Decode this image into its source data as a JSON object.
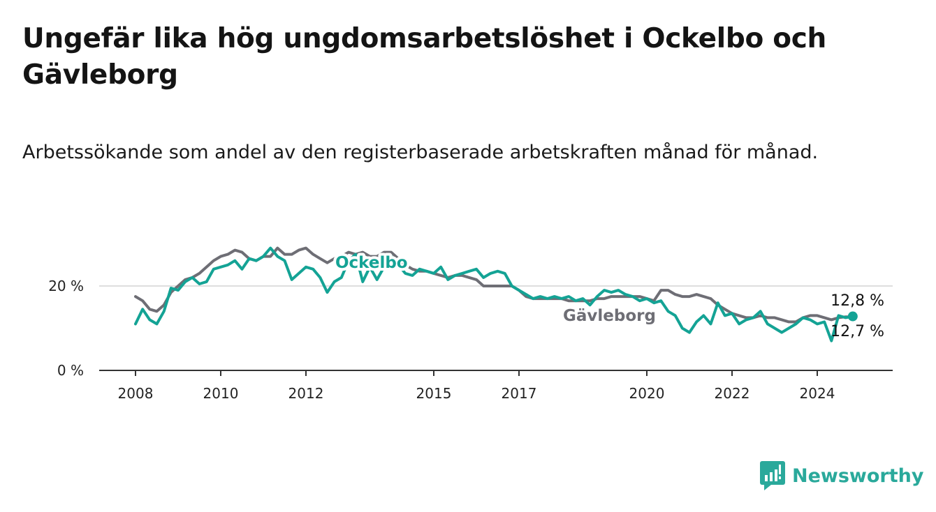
{
  "title": "Ungefär lika hög ungdomsarbetslöshet i Ockelbo och Gävleborg",
  "subtitle": "Arbetssökande som andel av den registerbaserade arbetskraften månad för månad.",
  "brand": {
    "name": "Newsworthy",
    "icon": "newsworthy-logo-icon",
    "color": "#2aa99b"
  },
  "chart_data": {
    "type": "line",
    "title": "Ungefär lika hög ungdomsarbetslöshet i Ockelbo och Gävleborg",
    "subtitle": "Arbetssökande som andel av den registerbaserade arbetskraften månad för månad.",
    "xlabel": "",
    "ylabel": "",
    "x_ticks": [
      "2008",
      "2010",
      "2012",
      "2015",
      "2017",
      "2020",
      "2022",
      "2024"
    ],
    "y_ticks": [
      "0 %",
      "20 %"
    ],
    "ylim": [
      0,
      30
    ],
    "xlim": [
      "2007-11",
      "2025-12"
    ],
    "grid": "horizontal",
    "legend": "inline labels",
    "series": [
      {
        "name": "Ockelbo",
        "color": "#14a395",
        "end_label": "12,8 %",
        "points": [
          [
            "2008-01",
            11
          ],
          [
            "2008-03",
            14.5
          ],
          [
            "2008-05",
            12
          ],
          [
            "2008-07",
            11
          ],
          [
            "2008-09",
            14
          ],
          [
            "2008-11",
            19.5
          ],
          [
            "2009-01",
            19
          ],
          [
            "2009-03",
            21
          ],
          [
            "2009-05",
            22
          ],
          [
            "2009-07",
            20.5
          ],
          [
            "2009-09",
            21
          ],
          [
            "2009-11",
            24
          ],
          [
            "2010-01",
            24.5
          ],
          [
            "2010-03",
            25
          ],
          [
            "2010-05",
            26
          ],
          [
            "2010-07",
            24
          ],
          [
            "2010-09",
            26.5
          ],
          [
            "2010-11",
            26
          ],
          [
            "2011-01",
            27
          ],
          [
            "2011-03",
            29
          ],
          [
            "2011-05",
            27
          ],
          [
            "2011-07",
            26
          ],
          [
            "2011-09",
            21.5
          ],
          [
            "2011-11",
            23
          ],
          [
            "2012-01",
            24.5
          ],
          [
            "2012-03",
            24
          ],
          [
            "2012-05",
            22
          ],
          [
            "2012-07",
            18.5
          ],
          [
            "2012-09",
            21
          ],
          [
            "2012-11",
            22
          ],
          [
            "2013-01",
            26
          ],
          [
            "2013-03",
            27.5
          ],
          [
            "2013-05",
            21
          ],
          [
            "2013-07",
            24.5
          ],
          [
            "2013-09",
            21.5
          ],
          [
            "2013-11",
            24.5
          ],
          [
            "2014-01",
            27
          ],
          [
            "2014-03",
            25
          ],
          [
            "2014-05",
            23
          ],
          [
            "2014-07",
            22.5
          ],
          [
            "2014-09",
            24
          ],
          [
            "2014-11",
            23.5
          ],
          [
            "2015-01",
            23
          ],
          [
            "2015-03",
            24.5
          ],
          [
            "2015-05",
            21.5
          ],
          [
            "2015-07",
            22.5
          ],
          [
            "2015-09",
            23
          ],
          [
            "2015-11",
            23.5
          ],
          [
            "2016-01",
            24
          ],
          [
            "2016-03",
            22
          ],
          [
            "2016-05",
            23
          ],
          [
            "2016-07",
            23.5
          ],
          [
            "2016-09",
            23
          ],
          [
            "2016-11",
            20
          ],
          [
            "2017-01",
            19
          ],
          [
            "2017-03",
            18
          ],
          [
            "2017-05",
            17
          ],
          [
            "2017-07",
            17.5
          ],
          [
            "2017-09",
            17
          ],
          [
            "2017-11",
            17.5
          ],
          [
            "2018-01",
            17
          ],
          [
            "2018-03",
            17.5
          ],
          [
            "2018-05",
            16.5
          ],
          [
            "2018-07",
            17
          ],
          [
            "2018-09",
            15.5
          ],
          [
            "2018-11",
            17.5
          ],
          [
            "2019-01",
            19
          ],
          [
            "2019-03",
            18.5
          ],
          [
            "2019-05",
            19
          ],
          [
            "2019-07",
            18
          ],
          [
            "2019-09",
            17.5
          ],
          [
            "2019-11",
            16.5
          ],
          [
            "2020-01",
            17
          ],
          [
            "2020-03",
            16
          ],
          [
            "2020-05",
            16.5
          ],
          [
            "2020-07",
            14
          ],
          [
            "2020-09",
            13
          ],
          [
            "2020-11",
            10
          ],
          [
            "2021-01",
            9
          ],
          [
            "2021-03",
            11.5
          ],
          [
            "2021-05",
            13
          ],
          [
            "2021-07",
            11
          ],
          [
            "2021-09",
            16
          ],
          [
            "2021-11",
            13
          ],
          [
            "2022-01",
            13.5
          ],
          [
            "2022-03",
            11
          ],
          [
            "2022-05",
            12
          ],
          [
            "2022-07",
            12.5
          ],
          [
            "2022-09",
            14
          ],
          [
            "2022-11",
            11
          ],
          [
            "2023-01",
            10
          ],
          [
            "2023-03",
            9
          ],
          [
            "2023-05",
            10
          ],
          [
            "2023-07",
            11
          ],
          [
            "2023-09",
            12.5
          ],
          [
            "2023-11",
            12
          ],
          [
            "2024-01",
            11
          ],
          [
            "2024-03",
            11.5
          ],
          [
            "2024-05",
            7
          ],
          [
            "2024-07",
            13
          ],
          [
            "2024-09",
            12.5
          ],
          [
            "2024-11",
            12.8
          ]
        ]
      },
      {
        "name": "Gävleborg",
        "color": "#6e6e75",
        "end_label": "12,7 %",
        "points": [
          [
            "2008-01",
            17.5
          ],
          [
            "2008-03",
            16.5
          ],
          [
            "2008-05",
            14.5
          ],
          [
            "2008-07",
            14
          ],
          [
            "2008-09",
            15.5
          ],
          [
            "2008-11",
            18.5
          ],
          [
            "2009-01",
            20
          ],
          [
            "2009-03",
            21.5
          ],
          [
            "2009-05",
            22
          ],
          [
            "2009-07",
            23
          ],
          [
            "2009-09",
            24.5
          ],
          [
            "2009-11",
            26
          ],
          [
            "2010-01",
            27
          ],
          [
            "2010-03",
            27.5
          ],
          [
            "2010-05",
            28.5
          ],
          [
            "2010-07",
            28
          ],
          [
            "2010-09",
            26.5
          ],
          [
            "2010-11",
            26
          ],
          [
            "2011-01",
            27
          ],
          [
            "2011-03",
            27
          ],
          [
            "2011-05",
            29
          ],
          [
            "2011-07",
            27.5
          ],
          [
            "2011-09",
            27.5
          ],
          [
            "2011-11",
            28.5
          ],
          [
            "2012-01",
            29
          ],
          [
            "2012-03",
            27.5
          ],
          [
            "2012-05",
            26.5
          ],
          [
            "2012-07",
            25.5
          ],
          [
            "2012-09",
            26.5
          ],
          [
            "2012-11",
            27
          ],
          [
            "2013-01",
            28
          ],
          [
            "2013-03",
            27.5
          ],
          [
            "2013-05",
            28
          ],
          [
            "2013-07",
            27
          ],
          [
            "2013-09",
            27
          ],
          [
            "2013-11",
            28
          ],
          [
            "2014-01",
            28
          ],
          [
            "2014-03",
            26.5
          ],
          [
            "2014-05",
            25
          ],
          [
            "2014-07",
            24
          ],
          [
            "2014-09",
            23.5
          ],
          [
            "2014-11",
            23.5
          ],
          [
            "2015-01",
            23
          ],
          [
            "2015-03",
            22.5
          ],
          [
            "2015-05",
            22
          ],
          [
            "2015-07",
            22.5
          ],
          [
            "2015-09",
            22.5
          ],
          [
            "2015-11",
            22
          ],
          [
            "2016-01",
            21.5
          ],
          [
            "2016-03",
            20
          ],
          [
            "2016-05",
            20
          ],
          [
            "2016-07",
            20
          ],
          [
            "2016-09",
            20
          ],
          [
            "2016-11",
            20
          ],
          [
            "2017-01",
            19
          ],
          [
            "2017-03",
            17.5
          ],
          [
            "2017-05",
            17
          ],
          [
            "2017-07",
            17
          ],
          [
            "2017-09",
            17
          ],
          [
            "2017-11",
            17
          ],
          [
            "2018-01",
            17
          ],
          [
            "2018-03",
            16.5
          ],
          [
            "2018-05",
            16.5
          ],
          [
            "2018-07",
            16.5
          ],
          [
            "2018-09",
            16.5
          ],
          [
            "2018-11",
            17
          ],
          [
            "2019-01",
            17
          ],
          [
            "2019-03",
            17.5
          ],
          [
            "2019-05",
            17.5
          ],
          [
            "2019-07",
            17.5
          ],
          [
            "2019-09",
            17.5
          ],
          [
            "2019-11",
            17.5
          ],
          [
            "2020-01",
            17
          ],
          [
            "2020-03",
            16.5
          ],
          [
            "2020-05",
            19
          ],
          [
            "2020-07",
            19
          ],
          [
            "2020-09",
            18
          ],
          [
            "2020-11",
            17.5
          ],
          [
            "2021-01",
            17.5
          ],
          [
            "2021-03",
            18
          ],
          [
            "2021-05",
            17.5
          ],
          [
            "2021-07",
            17
          ],
          [
            "2021-09",
            15.5
          ],
          [
            "2021-11",
            14.5
          ],
          [
            "2022-01",
            13.5
          ],
          [
            "2022-03",
            13
          ],
          [
            "2022-05",
            12.5
          ],
          [
            "2022-07",
            12.5
          ],
          [
            "2022-09",
            13
          ],
          [
            "2022-11",
            12.5
          ],
          [
            "2023-01",
            12.5
          ],
          [
            "2023-03",
            12
          ],
          [
            "2023-05",
            11.5
          ],
          [
            "2023-07",
            11.5
          ],
          [
            "2023-09",
            12.5
          ],
          [
            "2023-11",
            13
          ],
          [
            "2024-01",
            13
          ],
          [
            "2024-03",
            12.5
          ],
          [
            "2024-05",
            12
          ],
          [
            "2024-07",
            12.5
          ],
          [
            "2024-09",
            12.7
          ],
          [
            "2024-11",
            12.7
          ]
        ]
      }
    ]
  }
}
